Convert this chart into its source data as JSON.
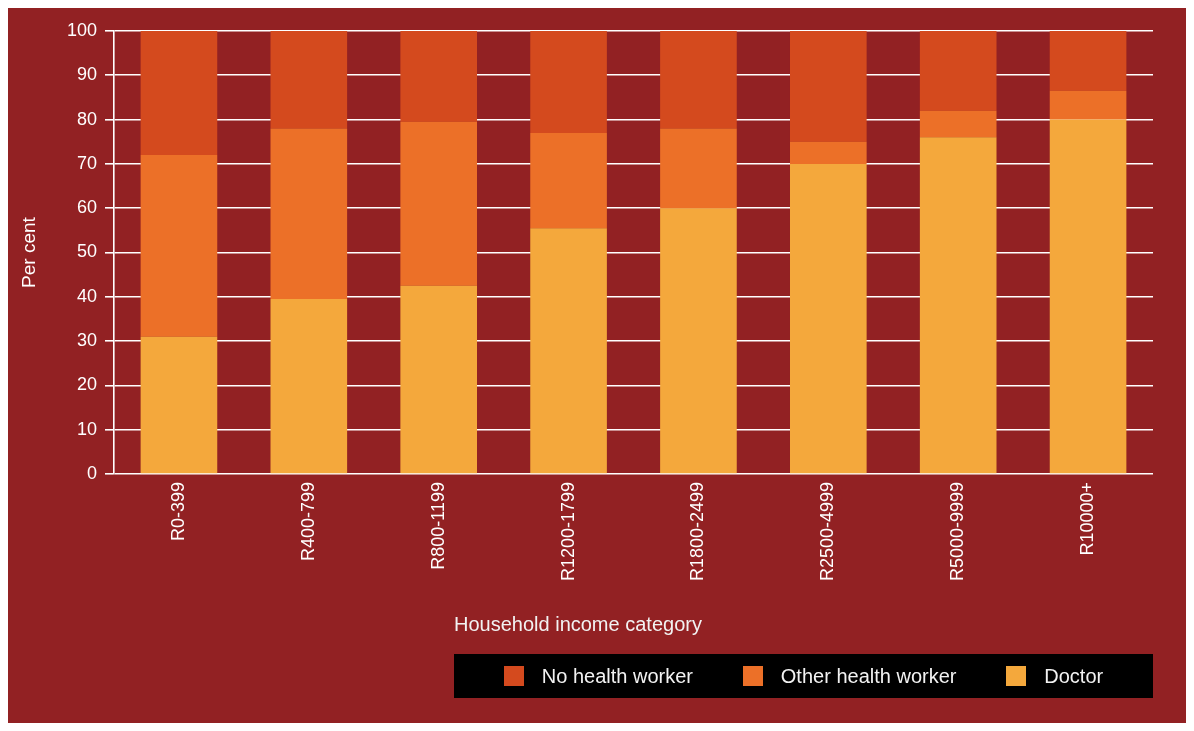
{
  "chart_data": {
    "type": "bar",
    "stacked": true,
    "xlabel": "Household income category",
    "ylabel": "Per cent",
    "categories": [
      "R0-399",
      "R400-799",
      "R800-1199",
      "R1200-1799",
      "R1800-2499",
      "R2500-4999",
      "R5000-9999",
      "R10000+"
    ],
    "series": [
      {
        "name": "Doctor",
        "color": "#f4a83c",
        "values": [
          31,
          39.5,
          42.5,
          55.5,
          60,
          70,
          76,
          80
        ]
      },
      {
        "name": "Other health worker",
        "color": "#ec7028",
        "values": [
          41,
          38.5,
          37,
          21.5,
          18,
          5,
          6,
          6.5
        ]
      },
      {
        "name": "No health worker",
        "color": "#d44a1e",
        "values": [
          28,
          22,
          20.5,
          23,
          22,
          25,
          18,
          13.5
        ]
      }
    ],
    "ylim": [
      0,
      100
    ],
    "yticks": [
      0,
      10,
      20,
      30,
      40,
      50,
      60,
      70,
      80,
      90,
      100
    ],
    "grid": "y",
    "legend": "bottom right"
  }
}
